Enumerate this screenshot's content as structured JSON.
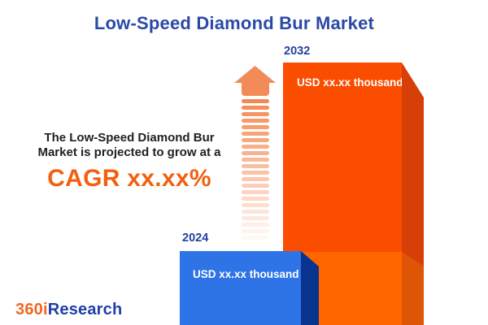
{
  "title": "Low-Speed Diamond Bur Market",
  "description": {
    "line1": "The Low-Speed Diamond Bur",
    "line2": "Market is projected to grow at a",
    "cagr": "CAGR xx.xx%"
  },
  "chart": {
    "bars": [
      {
        "year": "2024",
        "value_label": "USD xx.xx thousand"
      },
      {
        "year": "2032",
        "value_label": "USD xx.xx thousand"
      }
    ]
  },
  "chart_data": {
    "type": "bar",
    "categories": [
      "2024",
      "2032"
    ],
    "values": [
      null,
      null
    ],
    "value_labels": [
      "USD xx.xx thousand",
      "USD xx.xx thousand"
    ],
    "title": "Low-Speed Diamond Bur Market",
    "annotation": "The Low-Speed Diamond Bur Market is projected to grow at a CAGR xx.xx%",
    "legend": "none",
    "grid": false,
    "note": "values masked as xx.xx placeholders; 2032 bar ~3.6x taller than 2024 bar"
  },
  "icons": {
    "growth_arrow": "dashed-up-arrow-icon"
  },
  "logo": {
    "prefix": "360i",
    "suffix": "Research"
  },
  "colors": {
    "title_blue": "#2A49A7",
    "year_label_blue": "#24409F",
    "body_text": "#212121",
    "cagr_orange": "#F2600F",
    "bar_2032_face": "#FB4D00",
    "bar_2032_side": "#D63F07",
    "bar_back_face": "#FF6600",
    "bar_back_side": "#DE5505",
    "bar_2024_face": "#2F74E7",
    "bar_2024_side": "#083490",
    "arrow_head": "#F28B58",
    "arrow_stripe": "#F5854D",
    "logo_orange": "#F26722",
    "logo_blue": "#1D3FA9"
  }
}
